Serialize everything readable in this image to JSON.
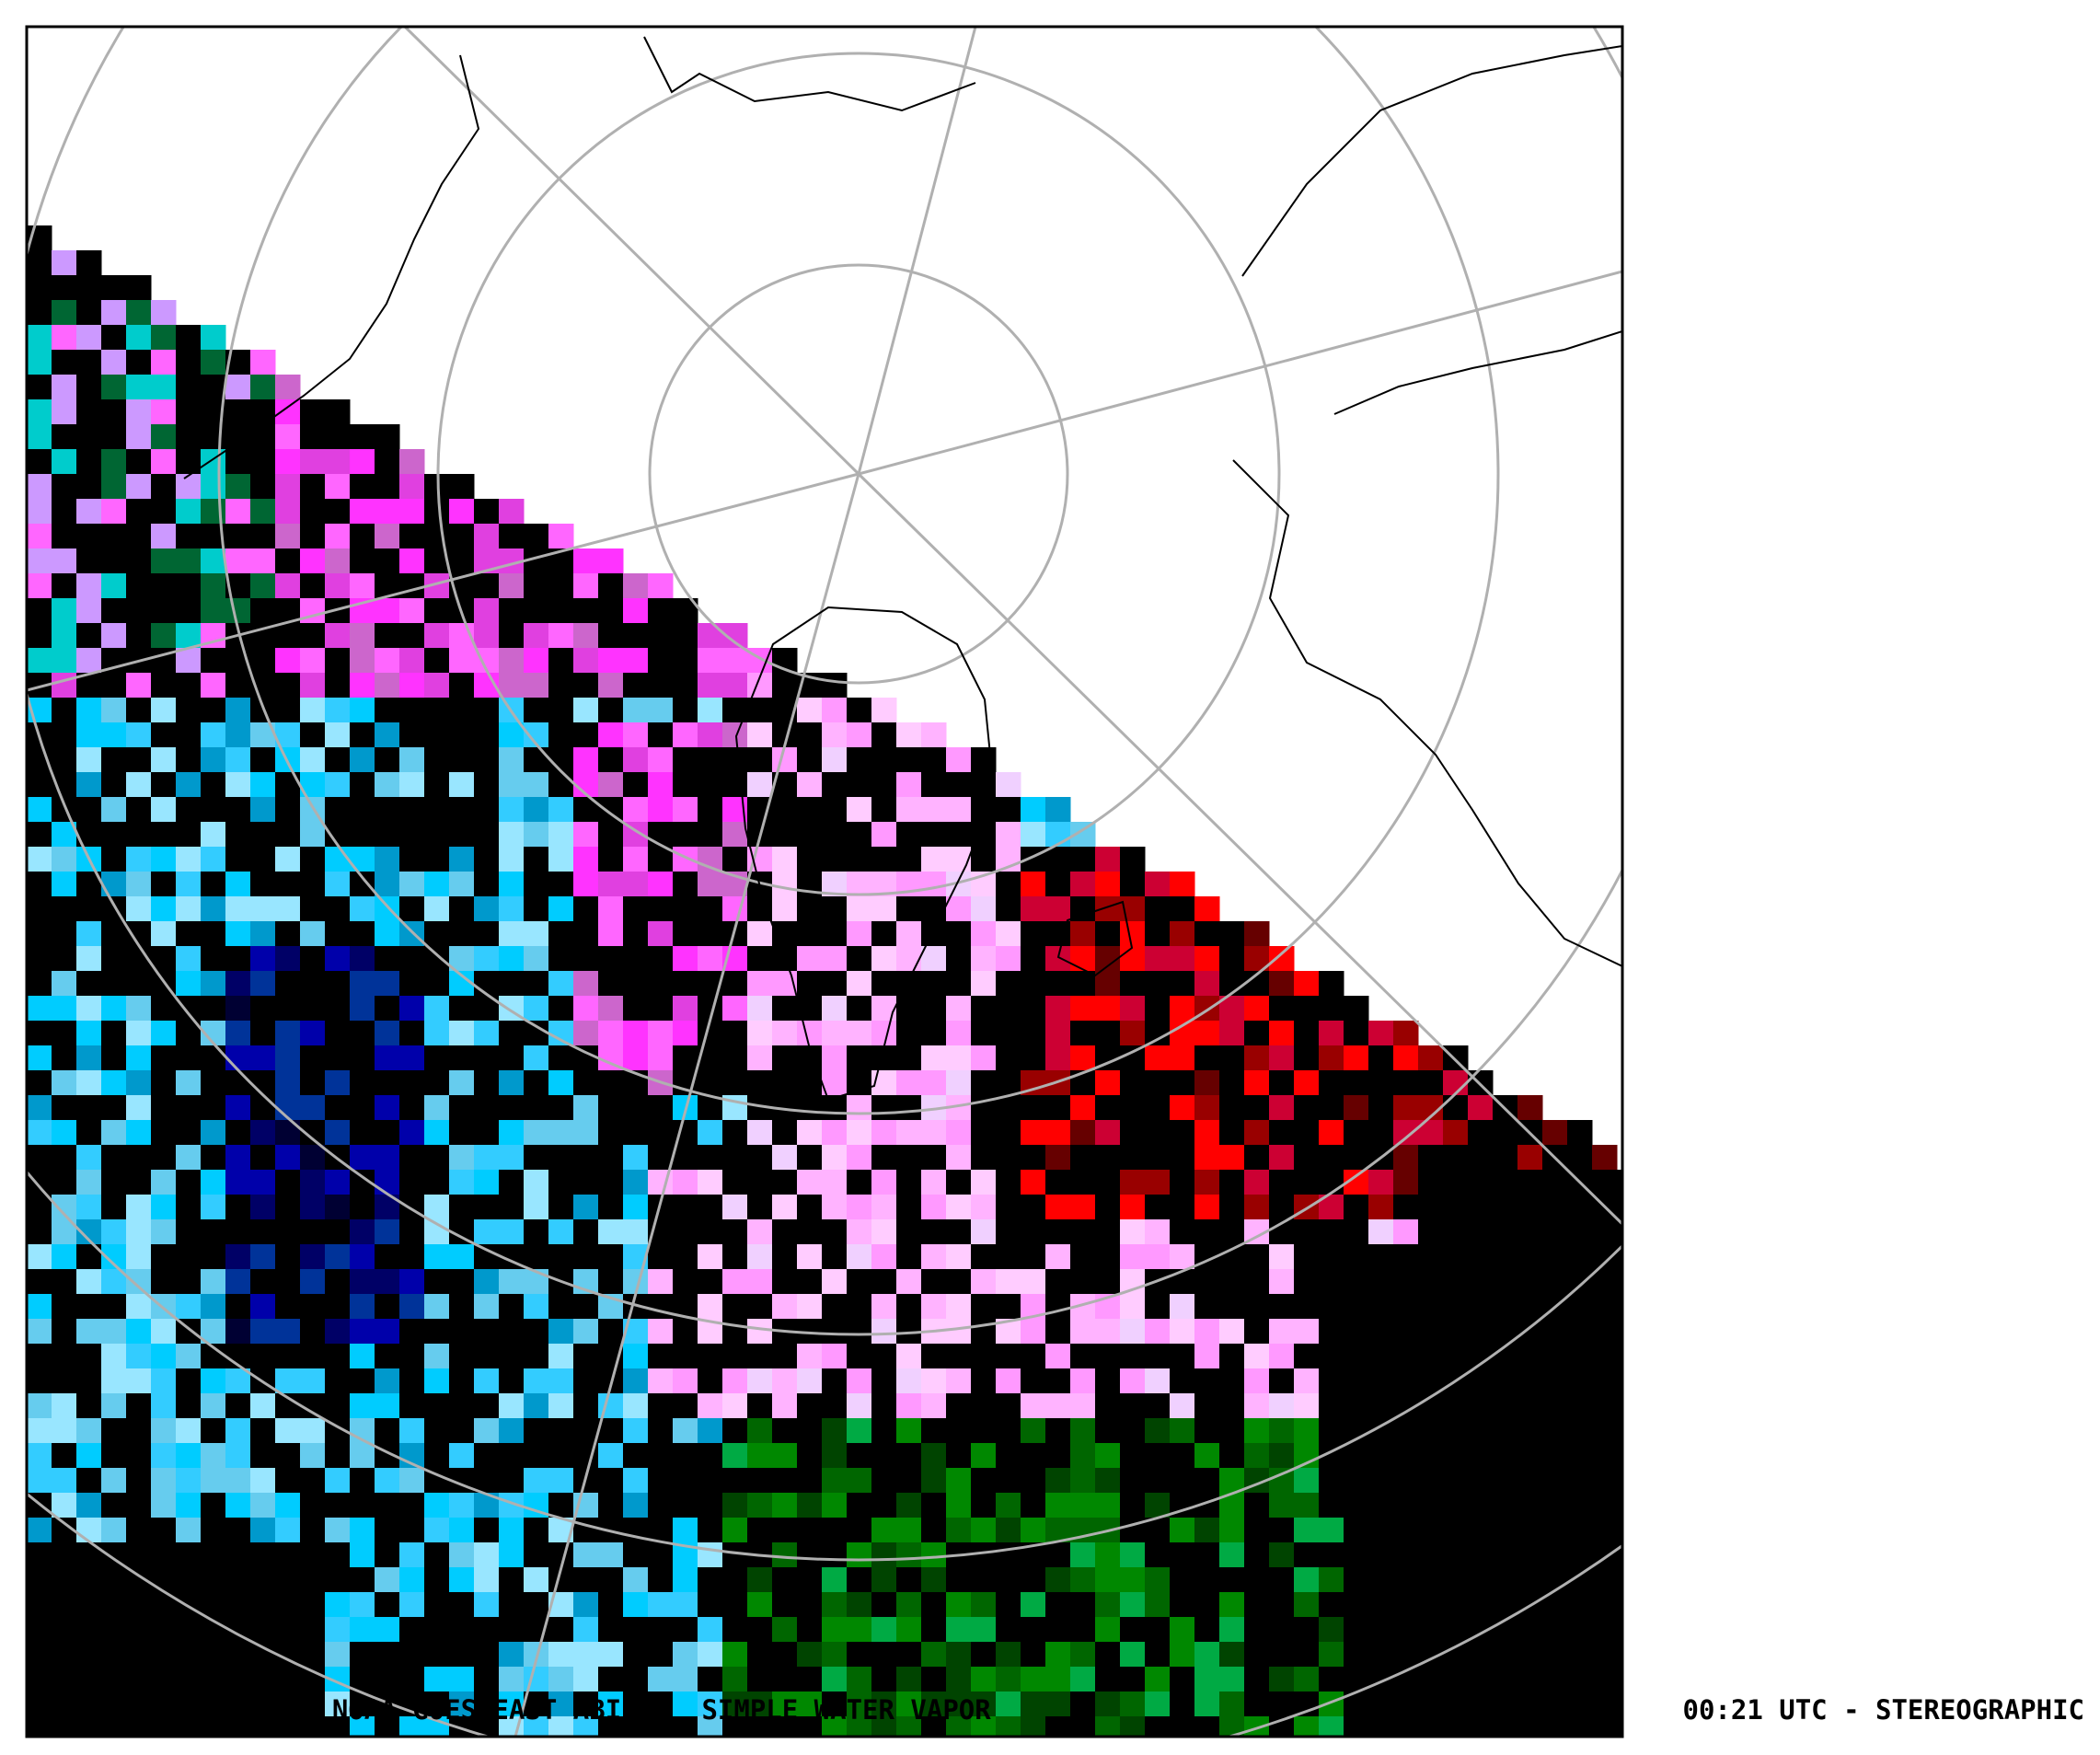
{
  "footer": {
    "left": "NASA SPORT  -  NOAA GOES-EAST ABI  -  SIMPLE WATER VAPOR",
    "right": "00:21 UTC - STEREOGRAPHIC"
  }
}
